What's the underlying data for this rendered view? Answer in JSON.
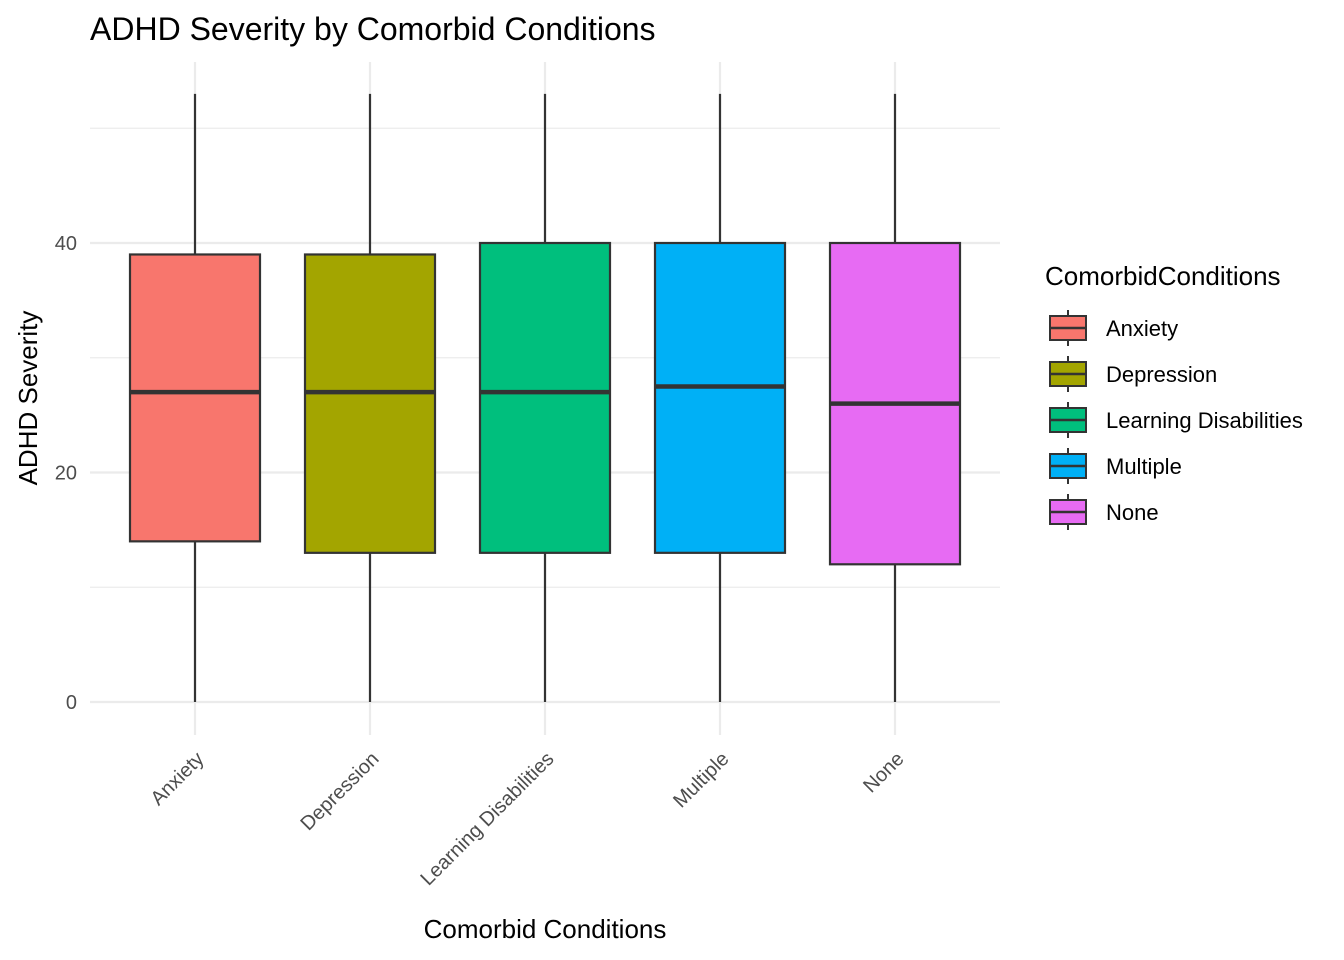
{
  "chart_data": {
    "type": "boxplot",
    "title": "ADHD Severity by Comorbid Conditions",
    "xlabel": "Comorbid Conditions",
    "ylabel": "ADHD Severity",
    "ylim": [
      -1.5,
      56
    ],
    "yticks": [
      0,
      20,
      40
    ],
    "grid": true,
    "legend": {
      "title": "ComorbidConditions",
      "position": "right"
    },
    "categories": [
      "Anxiety",
      "Depression",
      "Learning Disabilities",
      "Multiple",
      "None"
    ],
    "series": [
      {
        "category": "Anxiety",
        "min": 0,
        "q1": 14,
        "median": 27,
        "q3": 39,
        "max": 53,
        "color": "#F8766D"
      },
      {
        "category": "Depression",
        "min": 0,
        "q1": 13,
        "median": 27,
        "q3": 39,
        "max": 53,
        "color": "#A3A500"
      },
      {
        "category": "Learning Disabilities",
        "min": 0,
        "q1": 13,
        "median": 27,
        "q3": 40,
        "max": 53,
        "color": "#00BF7D"
      },
      {
        "category": "Multiple",
        "min": 0,
        "q1": 13,
        "median": 27.5,
        "q3": 40,
        "max": 53,
        "color": "#00B0F6"
      },
      {
        "category": "None",
        "min": 0,
        "q1": 12,
        "median": 26,
        "q3": 40,
        "max": 53,
        "color": "#E76BF3"
      }
    ]
  }
}
